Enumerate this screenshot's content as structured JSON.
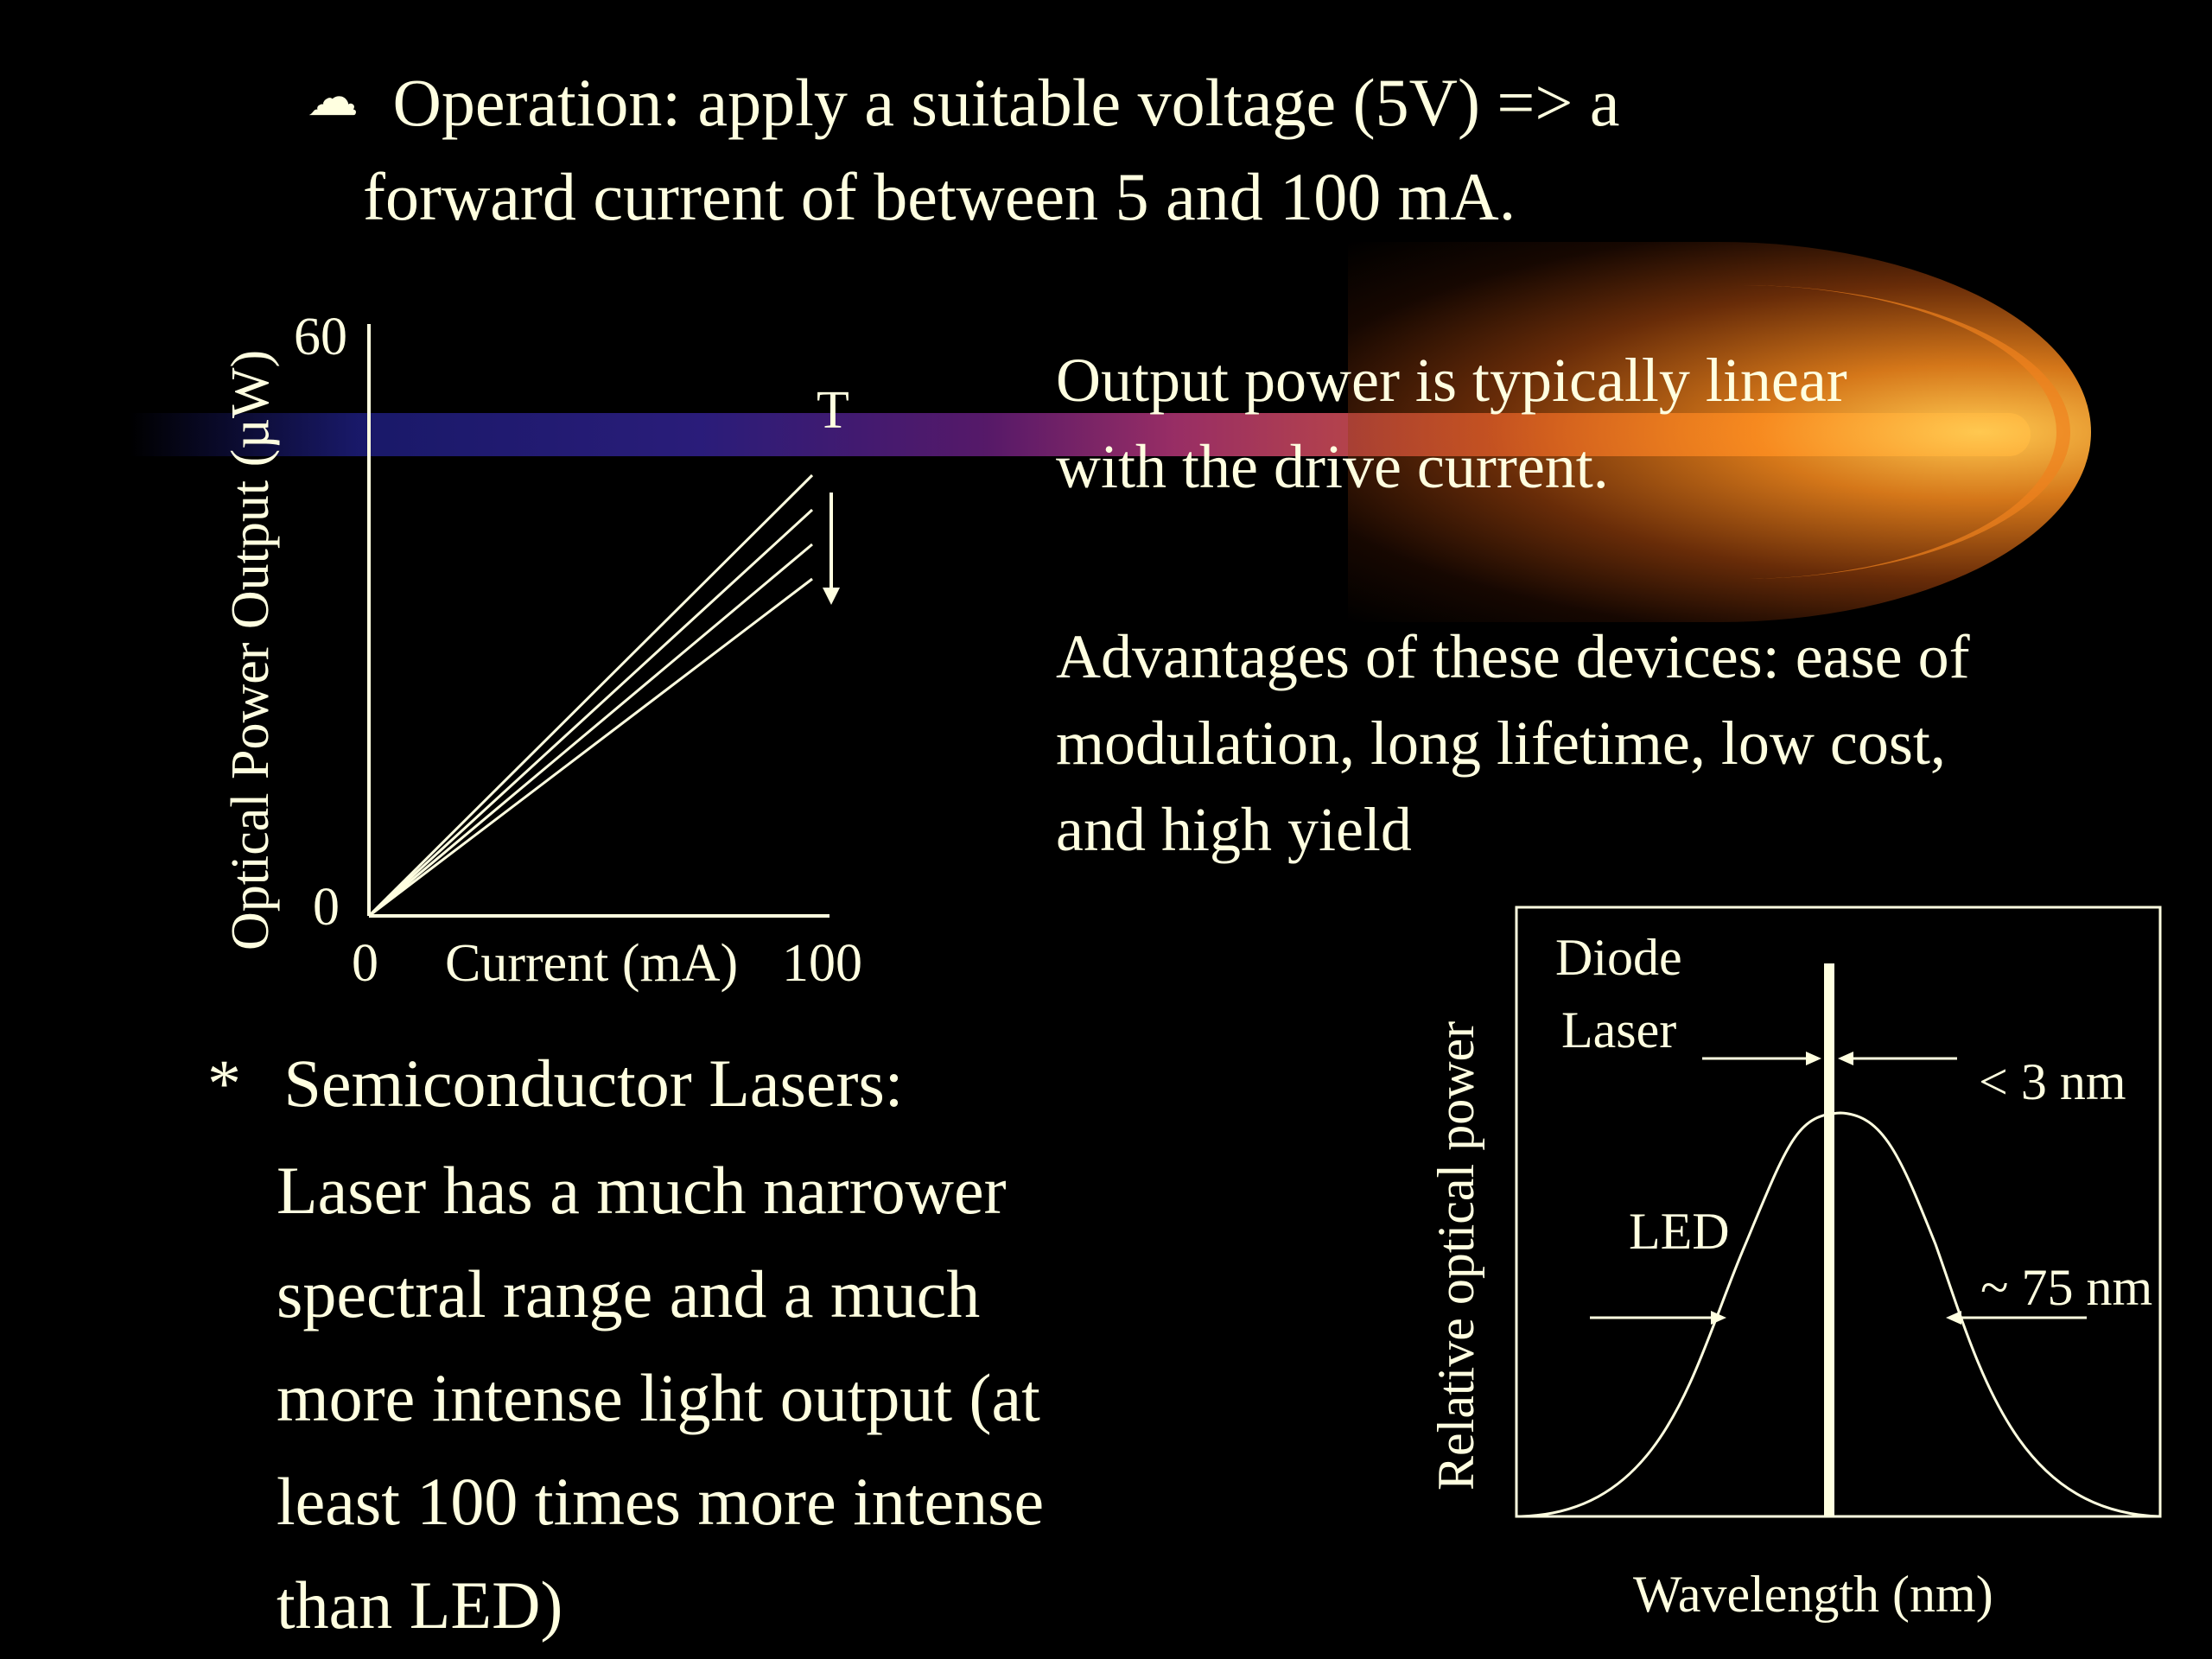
{
  "bullet_operation": {
    "bullet": "☁",
    "line1": "Operation: apply a suitable voltage (5V) => a",
    "line2": "forward current of between 5 and 100 mA."
  },
  "paragraph_linear": {
    "line1": "Output power is typically linear",
    "line2": "with the drive current."
  },
  "paragraph_advantages": {
    "line1": "Advantages of these devices: ease of",
    "line2": "modulation, long lifetime, low cost,",
    "line3": "and high yield"
  },
  "chart_power_current": {
    "ylabel": "Optical Power Output (µW)",
    "xlabel": "Current (mA)",
    "y_max_label": "60",
    "y_min_label": "0",
    "x_min_label": "0",
    "x_max_label": "100",
    "temperature_label": "T"
  },
  "semiconductor_bullet": {
    "marker": "*",
    "heading": "Semiconductor Lasers:",
    "line1": "Laser has a much narrower",
    "line2": "spectral range and a much",
    "line3": "more intense light output (at",
    "line4": "least 100 times more intense",
    "line5": "than LED)"
  },
  "chart_spectrum": {
    "ylabel": "Relative optical power",
    "xlabel": "Wavelength (nm)",
    "laser_label_line1": "Diode",
    "laser_label_line2": "Laser",
    "laser_width_label": "< 3 nm",
    "led_label": "LED",
    "led_width_label": "~ 75 nm"
  },
  "colors": {
    "text": "#FFFFE0",
    "background": "#000000"
  }
}
